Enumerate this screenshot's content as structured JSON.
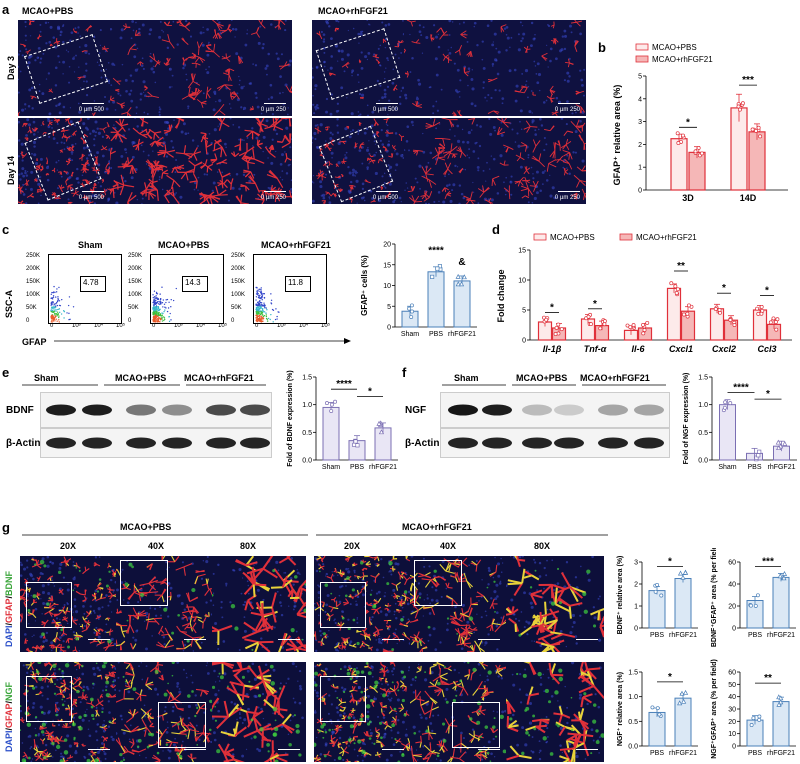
{
  "panel_letters": {
    "a": "a",
    "b": "b",
    "c": "c",
    "d": "d",
    "e": "e",
    "f": "f",
    "g": "g"
  },
  "panel_a": {
    "group_titles": [
      "MCAO+PBS",
      "MCAO+rhFGF21"
    ],
    "rows": [
      "Day 3",
      "Day 14"
    ],
    "scale_500": "0      µm 500",
    "scale_250": "0      µm 250",
    "colors": {
      "bg": "#0f1140",
      "astro": "#e0303a",
      "nuclei": "#2b3aa8"
    }
  },
  "panel_b": {
    "legend": [
      "MCAO+PBS",
      "MCAO+rhFGF21"
    ],
    "ylabel": "GFAP⁺ relative area (%)",
    "sig": [
      "*",
      "***"
    ]
  },
  "panel_c": {
    "plots": [
      {
        "title": "Sham",
        "gate": "4.78"
      },
      {
        "title": "MCAO+PBS",
        "gate": "14.3"
      },
      {
        "title": "MCAO+rhFGF21",
        "gate": "11.8"
      }
    ],
    "yticks": [
      "250K",
      "200K",
      "150K",
      "100K",
      "50K",
      "0"
    ],
    "xticks": [
      "0",
      "10³",
      "10⁴",
      "10⁵"
    ],
    "ylabel": "SSC-A",
    "xlabel": "GFAP",
    "bar_ylabel": "GFAP⁺ cells (%)",
    "sig": [
      "****",
      "&"
    ]
  },
  "panel_d": {
    "legend": [
      "MCAO+PBS",
      "MCAO+rhFGF21"
    ],
    "ylabel": "Fold change",
    "sig": [
      "*",
      "*",
      "**",
      "*",
      "*"
    ]
  },
  "panel_e": {
    "groups": [
      "Sham",
      "MCAO+PBS",
      "MCAO+rhFGF21"
    ],
    "bands": [
      "BDNF",
      "β-Actin"
    ],
    "ylabel": "Fold of BDNF expression (%)",
    "sig": [
      "****",
      "*"
    ]
  },
  "panel_f": {
    "groups": [
      "Sham",
      "MCAO+PBS",
      "MCAO+rhFGF21"
    ],
    "bands": [
      "NGF",
      "β-Actin"
    ],
    "ylabel": "Fold of NGF expression (%)",
    "sig": [
      "****",
      "*"
    ]
  },
  "panel_g": {
    "group_titles": [
      "MCAO+PBS",
      "MCAO+rhFGF21"
    ],
    "mags": [
      "20X",
      "40X",
      "80X"
    ],
    "row_labels": [
      {
        "dapi": "DAPI",
        "gfap": "GFAP",
        "marker": "BDNF"
      },
      {
        "dapi": "DAPI",
        "gfap": "GFAP",
        "marker": "NGF"
      }
    ],
    "bdnf_ylabel": "BDNF⁺ relative area (%)",
    "bdnf_co_ylabel": "BDNF⁺GFAP⁺ area (% per field)",
    "ngf_ylabel": "NGF⁺ relative area (%)",
    "ngf_co_ylabel": "NGF⁺GFAP⁺ area (% per field)",
    "sig": [
      "*",
      "***",
      "*",
      "**"
    ]
  },
  "chart_data": [
    {
      "type": "bar",
      "panel": "b",
      "categories": [
        "3D",
        "14D"
      ],
      "series": [
        {
          "name": "MCAO+PBS",
          "values": [
            2.25,
            3.6
          ]
        },
        {
          "name": "MCAO+rhFGF21",
          "values": [
            1.65,
            2.55
          ]
        }
      ],
      "ylim": [
        0,
        5
      ],
      "yticks": [
        0,
        1,
        2,
        3,
        4,
        5
      ],
      "ylabel": "GFAP⁺ relative area (%)",
      "colors": {
        "stroke": "#e0303a",
        "fill_pbs": "#fdeaea",
        "fill_fgf": "#f5b7b7"
      }
    },
    {
      "type": "bar",
      "panel": "c",
      "categories": [
        "Sham",
        "PBS",
        "rhFGF21"
      ],
      "values": [
        3.8,
        13.3,
        11.1
      ],
      "ylim": [
        0,
        20
      ],
      "yticks": [
        0,
        5,
        10,
        15,
        20
      ],
      "ylabel": "GFAP⁺ cells (%)",
      "colors": {
        "stroke": "#4a7fb8",
        "fill": "#dbe8f5"
      }
    },
    {
      "type": "bar",
      "panel": "d",
      "categories": [
        "Il-1β",
        "Tnf-α",
        "Il-6",
        "Cxcl1",
        "Cxcl2",
        "Ccl3"
      ],
      "series": [
        {
          "name": "MCAO+PBS",
          "values": [
            3.0,
            3.5,
            1.6,
            8.6,
            5.2,
            5.0
          ]
        },
        {
          "name": "MCAO+rhFGF21",
          "values": [
            2.0,
            2.4,
            2.0,
            4.8,
            3.3,
            2.6
          ]
        }
      ],
      "ylim": [
        0,
        15
      ],
      "yticks": [
        0,
        5,
        10,
        15
      ],
      "ylabel": "Fold change",
      "colors": {
        "stroke": "#e0303a",
        "fill_pbs": "#fdeaea",
        "fill_fgf": "#f5b7b7"
      }
    },
    {
      "type": "bar",
      "panel": "e",
      "categories": [
        "Sham",
        "PBS",
        "rhFGF21"
      ],
      "values": [
        0.95,
        0.35,
        0.58
      ],
      "ylim": [
        0,
        1.5
      ],
      "yticks": [
        0.0,
        0.5,
        1.0,
        1.5
      ],
      "ylabel": "Fold of BDNF expression (%)",
      "colors": {
        "stroke": "#7b6fb3",
        "fill": "#e9e6f5"
      }
    },
    {
      "type": "bar",
      "panel": "f",
      "categories": [
        "Sham",
        "PBS",
        "rhFGF21"
      ],
      "values": [
        1.0,
        0.12,
        0.25
      ],
      "ylim": [
        0,
        1.5
      ],
      "yticks": [
        0.0,
        0.5,
        1.0,
        1.5
      ],
      "ylabel": "Fold of NGF expression (%)",
      "colors": {
        "stroke": "#7b6fb3",
        "fill": "#e9e6f5"
      }
    },
    {
      "type": "bar",
      "panel": "g-bdnf",
      "categories": [
        "PBS",
        "rhFGF21"
      ],
      "values": [
        1.7,
        2.25
      ],
      "ylim": [
        0,
        3
      ],
      "yticks": [
        0,
        1,
        2,
        3
      ],
      "ylabel": "BDNF⁺ relative area (%)",
      "colors": {
        "stroke": "#4a7fb8",
        "fill": "#dbe8f5"
      }
    },
    {
      "type": "bar",
      "panel": "g-bdnf-co",
      "categories": [
        "PBS",
        "rhFGF21"
      ],
      "values": [
        25,
        46
      ],
      "ylim": [
        0,
        60
      ],
      "yticks": [
        0,
        20,
        40,
        60
      ],
      "ylabel": "BDNF⁺GFAP⁺ area (% per field)",
      "colors": {
        "stroke": "#4a7fb8",
        "fill": "#dbe8f5"
      }
    },
    {
      "type": "bar",
      "panel": "g-ngf",
      "categories": [
        "PBS",
        "rhFGF21"
      ],
      "values": [
        0.68,
        0.97
      ],
      "ylim": [
        0,
        1.5
      ],
      "yticks": [
        0.0,
        0.5,
        1.0,
        1.5
      ],
      "ylabel": "NGF⁺ relative area (%)",
      "colors": {
        "stroke": "#4a7fb8",
        "fill": "#dbe8f5"
      }
    },
    {
      "type": "bar",
      "panel": "g-ngf-co",
      "categories": [
        "PBS",
        "rhFGF21"
      ],
      "values": [
        21,
        36
      ],
      "ylim": [
        0,
        60
      ],
      "yticks": [
        0,
        10,
        20,
        30,
        40,
        50,
        60
      ],
      "ylabel": "NGF⁺GFAP⁺ area (% per field)",
      "colors": {
        "stroke": "#4a7fb8",
        "fill": "#dbe8f5"
      }
    }
  ]
}
